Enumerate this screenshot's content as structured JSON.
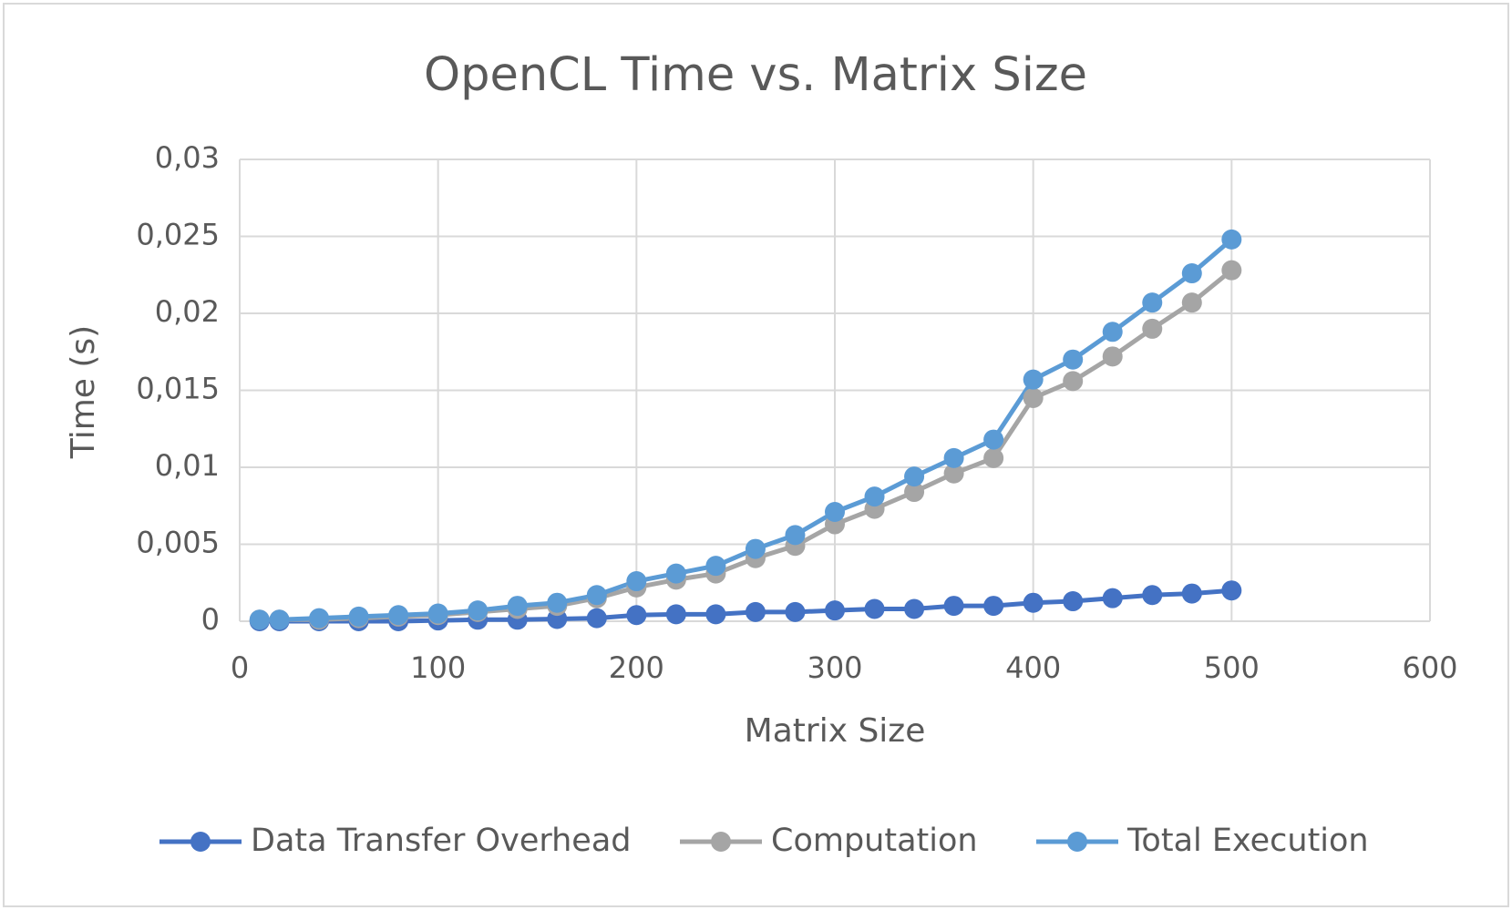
{
  "chart_data": {
    "type": "line",
    "title": "OpenCL Time vs. Matrix Size",
    "x_label": "Matrix Size",
    "y_label": "Time (s)",
    "x": [
      10,
      20,
      40,
      60,
      80,
      100,
      120,
      140,
      160,
      180,
      200,
      220,
      240,
      260,
      280,
      300,
      320,
      340,
      360,
      380,
      400,
      420,
      440,
      460,
      480,
      500
    ],
    "series": [
      {
        "name": "Data Transfer Overhead",
        "color": "#4472c4",
        "values": [
          0,
          0,
          0,
          0,
          0,
          5e-05,
          0.0001,
          0.0001,
          0.00015,
          0.0002,
          0.0004,
          0.00045,
          0.00045,
          0.0006,
          0.0006,
          0.0007,
          0.0008,
          0.0008,
          0.001,
          0.001,
          0.0012,
          0.0013,
          0.0015,
          0.0017,
          0.0018,
          0.002
        ]
      },
      {
        "name": "Computation",
        "color": "#a5a5a5",
        "values": [
          0.0001,
          0.0001,
          0.0001,
          0.0002,
          0.0003,
          0.0004,
          0.0006,
          0.0008,
          0.001,
          0.0015,
          0.0022,
          0.0027,
          0.0031,
          0.0041,
          0.0049,
          0.0063,
          0.0073,
          0.0084,
          0.0096,
          0.0106,
          0.0145,
          0.0156,
          0.0172,
          0.019,
          0.0207,
          0.0228
        ]
      },
      {
        "name": "Total Execution",
        "color": "#5b9bd5",
        "values": [
          0.0001,
          0.0001,
          0.0002,
          0.0003,
          0.0004,
          0.0005,
          0.0007,
          0.001,
          0.0012,
          0.0017,
          0.0026,
          0.0031,
          0.0036,
          0.0047,
          0.0056,
          0.0071,
          0.0081,
          0.0094,
          0.0106,
          0.0118,
          0.0157,
          0.017,
          0.0188,
          0.0207,
          0.0226,
          0.0248
        ]
      }
    ],
    "xlim": [
      0,
      600
    ],
    "xticks": [
      0,
      100,
      200,
      300,
      400,
      500,
      600
    ],
    "ylim": [
      0,
      0.03
    ],
    "yticks": [
      0,
      {
        "value": 0.005,
        "label": "0,005"
      },
      {
        "value": 0.01,
        "label": "0,01"
      },
      {
        "value": 0.015,
        "label": "0,015"
      },
      {
        "value": 0.02,
        "label": "0,02"
      },
      {
        "value": 0.025,
        "label": "0,025"
      },
      {
        "value": 0.03,
        "label": "0,03"
      }
    ],
    "grid": true,
    "legend": "bottom"
  }
}
